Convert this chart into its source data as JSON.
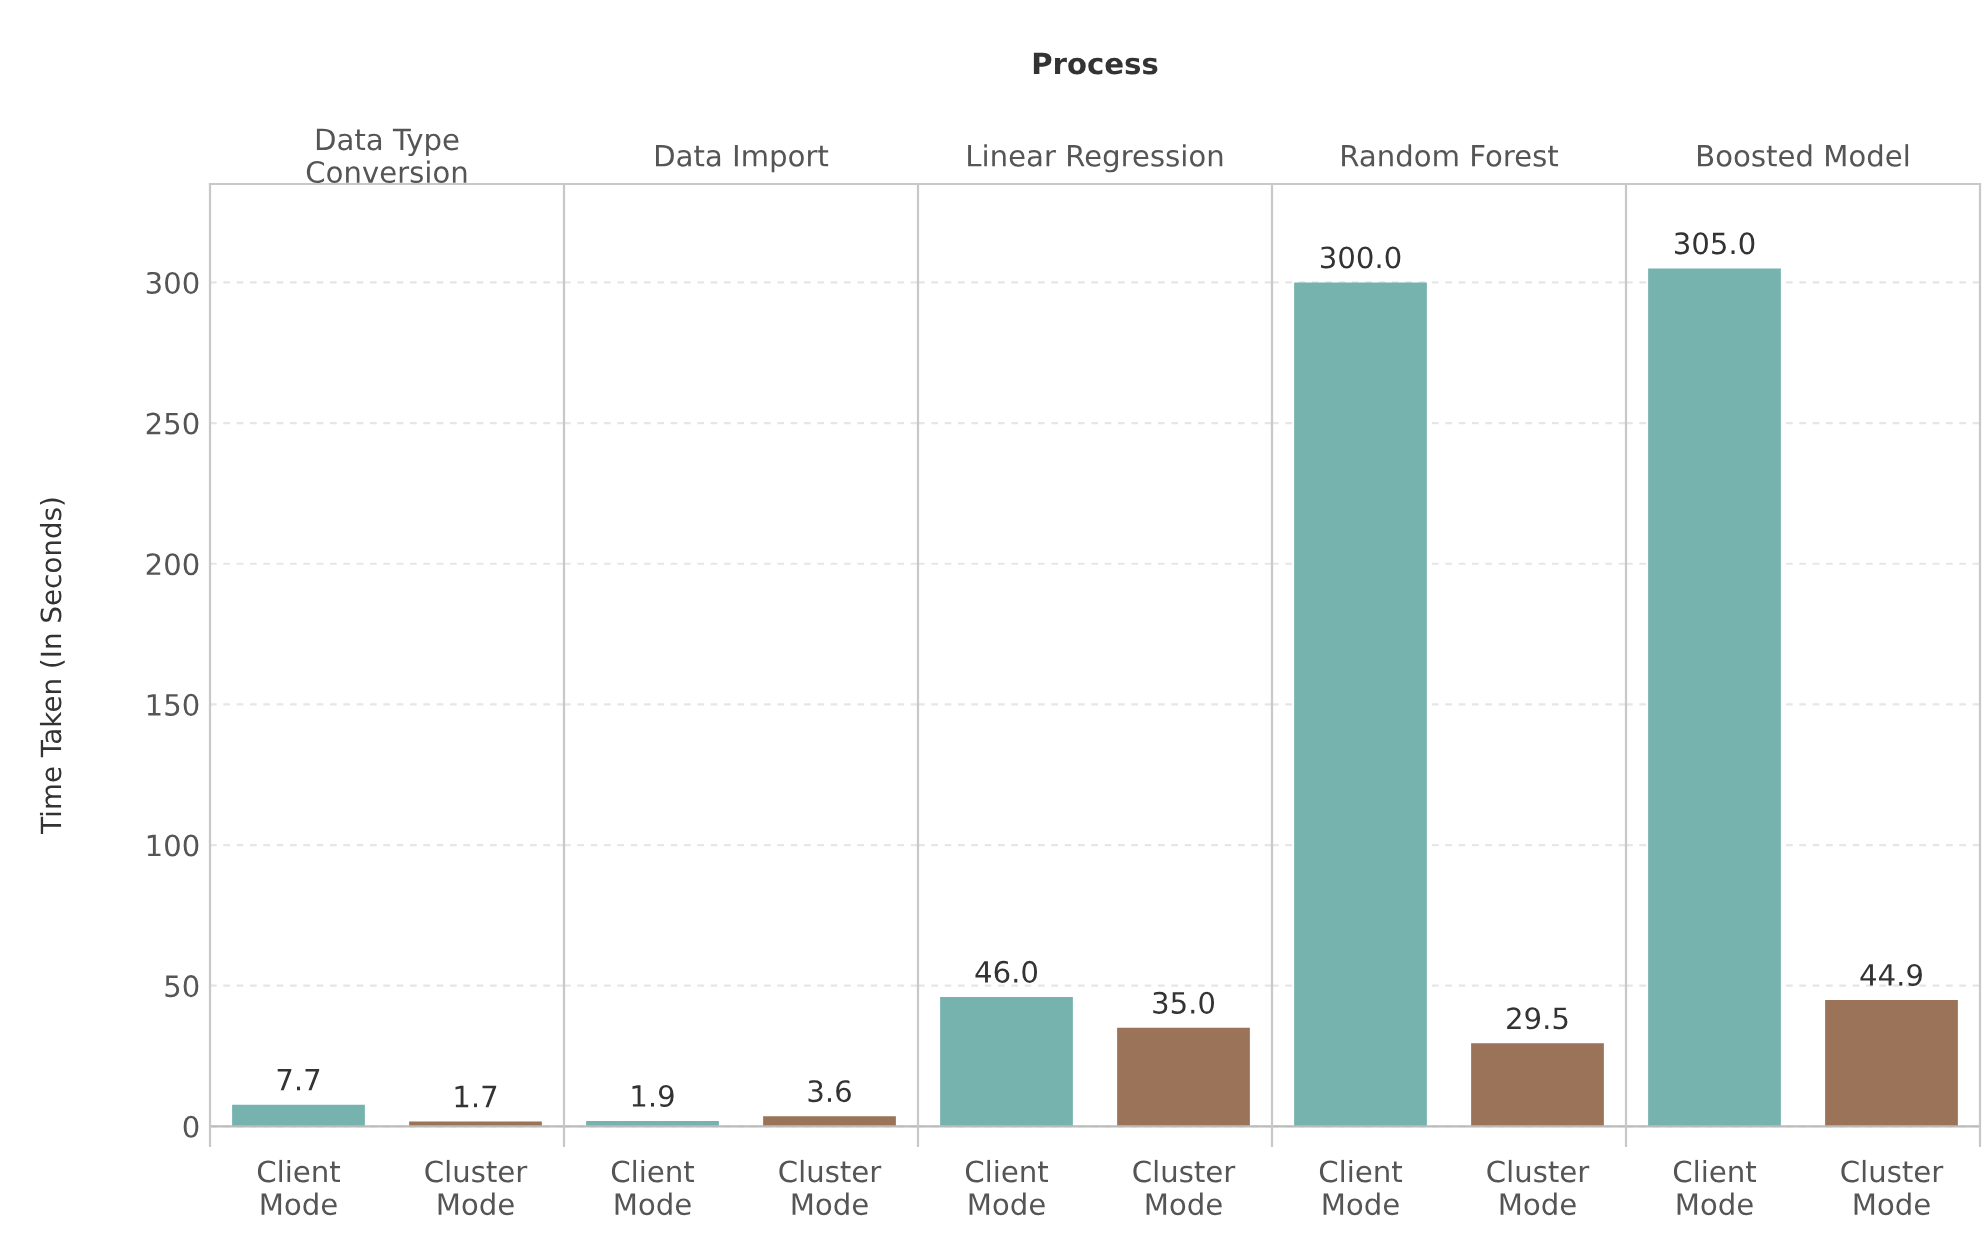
{
  "chart_data": [
    {
      "type": "bar",
      "title": "Data Type\nConversion",
      "ylabel": "Time Taken (In Seconds)",
      "annotations": [
        "Process"
      ],
      "categories": [
        "Client\nMode",
        "Cluster\nMode"
      ],
      "values": [
        7.7,
        1.7
      ],
      "value_labels": [
        "7.7",
        "1.7"
      ],
      "colors": [
        "#76b2ae",
        "#9a7358"
      ],
      "ylim": [
        -7,
        335
      ],
      "yticks": [
        0,
        50,
        100,
        150,
        200,
        250,
        300
      ],
      "grid": "y"
    },
    {
      "type": "bar",
      "title": "Data Import",
      "categories": [
        "Client\nMode",
        "Cluster\nMode"
      ],
      "values": [
        1.9,
        3.6
      ],
      "value_labels": [
        "1.9",
        "3.6"
      ],
      "colors": [
        "#76b2ae",
        "#9a7358"
      ],
      "ylim": [
        -7,
        335
      ],
      "yticks": [
        0,
        50,
        100,
        150,
        200,
        250,
        300
      ],
      "tick_labels": "x",
      "grid": "y"
    },
    {
      "type": "bar",
      "title": "Linear Regression",
      "categories": [
        "Client\nMode",
        "Cluster\nMode"
      ],
      "values": [
        46,
        35
      ],
      "value_labels": [
        "46.0",
        "35.0"
      ],
      "colors": [
        "#76b2ae",
        "#9a7358"
      ],
      "ylim": [
        -7,
        335
      ],
      "yticks": [
        0,
        50,
        100,
        150,
        200,
        250,
        300
      ],
      "tick_labels": "x",
      "grid": "y"
    },
    {
      "type": "bar",
      "title": "Random Forest",
      "categories": [
        "Client\nMode",
        "Cluster\nMode"
      ],
      "values": [
        300,
        29.5
      ],
      "value_labels": [
        "300.0",
        "29.5"
      ],
      "colors": [
        "#76b2ae",
        "#9a7358"
      ],
      "ylim": [
        -7,
        335
      ],
      "yticks": [
        0,
        50,
        100,
        150,
        200,
        250,
        300
      ],
      "tick_labels": "x",
      "grid": "y"
    },
    {
      "type": "bar",
      "title": "Boosted Model",
      "categories": [
        "Client\nMode",
        "Cluster\nMode"
      ],
      "values": [
        305,
        44.9
      ],
      "value_labels": [
        "305.0",
        "44.9"
      ],
      "colors": [
        "#76b2ae",
        "#9a7358"
      ],
      "ylim": [
        -7,
        335
      ],
      "yticks": [
        0,
        50,
        100,
        150,
        200,
        250,
        300
      ],
      "tick_labels": "x",
      "grid": "y"
    }
  ]
}
